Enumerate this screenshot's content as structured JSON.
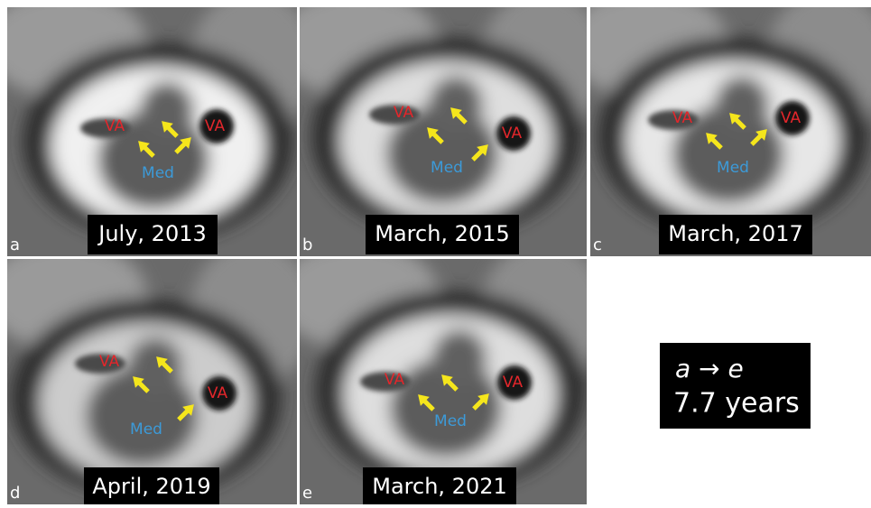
{
  "panels": [
    {
      "letter": "a",
      "date": "July, 2013",
      "labels": [
        "VA",
        "VA",
        "Med"
      ]
    },
    {
      "letter": "b",
      "date": "March, 2015",
      "labels": [
        "VA",
        "VA",
        "Med"
      ]
    },
    {
      "letter": "c",
      "date": "March, 2017",
      "labels": [
        "VA",
        "VA",
        "Med"
      ]
    },
    {
      "letter": "d",
      "date": "April, 2019",
      "labels": [
        "VA",
        "VA",
        "Med"
      ]
    },
    {
      "letter": "e",
      "date": "March, 2021",
      "labels": [
        "VA",
        "VA",
        "Med"
      ]
    }
  ],
  "summary": {
    "line1": [
      "a",
      "→",
      "e"
    ],
    "line2": "7.7 years"
  }
}
